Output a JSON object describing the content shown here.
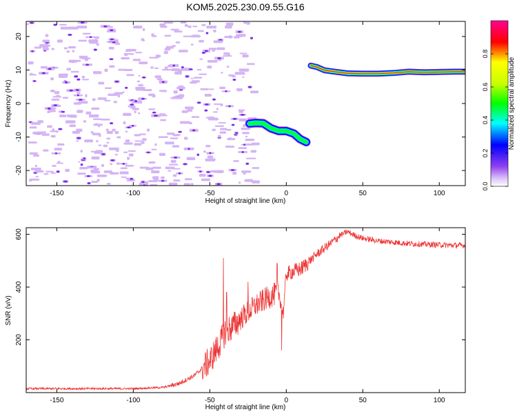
{
  "title": "KOM5.2025.230.09.55.G16",
  "chart_data": [
    {
      "type": "heatmap",
      "xlabel": "Height of straight line (km)",
      "ylabel": "Frequency (Hz)",
      "xlim": [
        -170,
        117
      ],
      "ylim": [
        -24.5,
        24.5
      ],
      "x_ticks": [
        -150,
        -100,
        -50,
        0,
        50,
        100
      ],
      "y_ticks": [
        -20,
        -10,
        0,
        10,
        20
      ],
      "noise_region_x": [
        -170,
        -22
      ],
      "traces": [
        {
          "name": "lower-trace",
          "points": [
            [
              -24,
              -6
            ],
            [
              -20,
              -5.8
            ],
            [
              -15,
              -5.9
            ],
            [
              -10,
              -7.4
            ],
            [
              -5,
              -8.2
            ],
            [
              0,
              -8.2
            ],
            [
              5,
              -9
            ],
            [
              9,
              -10.6
            ],
            [
              13,
              -11.5
            ]
          ],
          "width_hz": [
            2.0,
            2.6,
            2.3,
            1.6,
            1.6,
            2.2,
            1.8,
            1.6,
            1.2
          ]
        },
        {
          "name": "upper-trace",
          "points": [
            [
              16,
              11.3
            ],
            [
              20,
              10.9
            ],
            [
              25,
              9.9
            ],
            [
              30,
              9.6
            ],
            [
              40,
              9.0
            ],
            [
              50,
              8.9
            ],
            [
              60,
              8.9
            ],
            [
              70,
              9.1
            ],
            [
              80,
              9.5
            ],
            [
              90,
              9.3
            ],
            [
              100,
              9.4
            ],
            [
              110,
              9.5
            ],
            [
              117,
              9.5
            ]
          ],
          "width_hz": [
            1.5,
            1.8,
            1.6,
            1.2,
            1.2,
            1.1,
            1.1,
            1.2,
            1.1,
            0.9,
            0.9,
            0.9,
            0.9
          ]
        }
      ],
      "colorbar": {
        "label": "Normalized spectral amplitude",
        "range": [
          0,
          1
        ],
        "ticks": [
          0.0,
          0.2,
          0.4,
          0.6,
          0.8
        ]
      }
    },
    {
      "type": "line",
      "xlabel": "Height of straight line (km)",
      "ylabel": "SNR (v/v)",
      "xlim": [
        -170,
        117
      ],
      "ylim": [
        0,
        625
      ],
      "x_ticks": [
        -150,
        -100,
        -50,
        0,
        50,
        100
      ],
      "y_ticks": [
        200,
        400,
        600
      ],
      "series": [
        {
          "name": "SNR",
          "color": "#ee3333",
          "envelope_x": [
            -170,
            -100,
            -80,
            -70,
            -60,
            -50,
            -43,
            -40,
            -35,
            -28,
            -20,
            -12,
            -5,
            -2,
            0,
            10,
            20,
            30,
            35,
            40,
            45,
            50,
            60,
            70,
            80,
            90,
            100,
            110,
            117
          ],
          "envelope_y": [
            15,
            15,
            20,
            35,
            65,
            120,
            190,
            230,
            250,
            290,
            330,
            360,
            380,
            300,
            450,
            470,
            525,
            570,
            595,
            610,
            595,
            585,
            575,
            570,
            565,
            562,
            560,
            558,
            558
          ],
          "spikes": [
            [
              -41,
              510
            ],
            [
              -39,
              380
            ],
            [
              -25,
              420
            ],
            [
              -6,
              490
            ],
            [
              -3,
              160
            ],
            [
              2,
              460
            ]
          ]
        }
      ]
    }
  ],
  "colors": {
    "noise_light": "#d4b4f4",
    "noise_dark": "#7a2ae6",
    "line": "#ee3333"
  }
}
